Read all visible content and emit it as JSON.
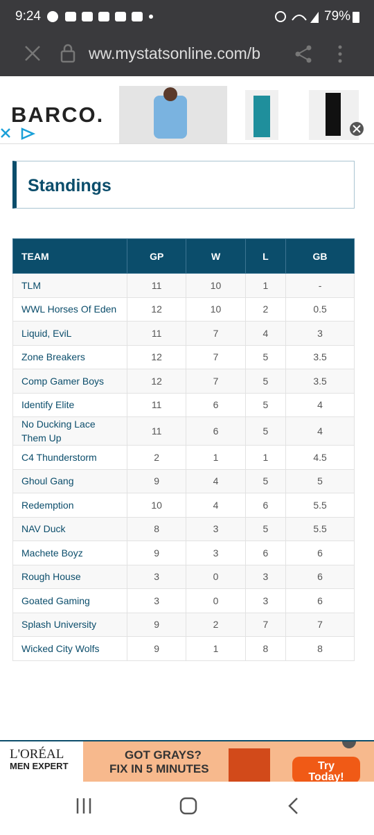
{
  "status_bar": {
    "time": "9:24",
    "battery": "79%"
  },
  "browser": {
    "url": "ww.mystatsonline.com/b"
  },
  "top_ad": {
    "brand": "BARCO."
  },
  "heading": "Standings",
  "table": {
    "columns": [
      "TEAM",
      "GP",
      "W",
      "L",
      "GB"
    ],
    "rows": [
      [
        "TLM",
        "11",
        "10",
        "1",
        "-"
      ],
      [
        "WWL Horses Of Eden",
        "12",
        "10",
        "2",
        "0.5"
      ],
      [
        "Liquid, EviL",
        "11",
        "7",
        "4",
        "3"
      ],
      [
        "Zone Breakers",
        "12",
        "7",
        "5",
        "3.5"
      ],
      [
        "Comp Gamer Boys",
        "12",
        "7",
        "5",
        "3.5"
      ],
      [
        "Identify Elite",
        "11",
        "6",
        "5",
        "4"
      ],
      [
        "No Ducking Lace Them Up",
        "11",
        "6",
        "5",
        "4"
      ],
      [
        "C4 Thunderstorm",
        "2",
        "1",
        "1",
        "4.5"
      ],
      [
        "Ghoul Gang",
        "9",
        "4",
        "5",
        "5"
      ],
      [
        "Redemption",
        "10",
        "4",
        "6",
        "5.5"
      ],
      [
        "NAV Duck",
        "8",
        "3",
        "5",
        "5.5"
      ],
      [
        "Machete Boyz",
        "9",
        "3",
        "6",
        "6"
      ],
      [
        "Rough House",
        "3",
        "0",
        "3",
        "6"
      ],
      [
        "Goated Gaming",
        "3",
        "0",
        "3",
        "6"
      ],
      [
        "Splash University",
        "9",
        "2",
        "7",
        "7"
      ],
      [
        "Wicked City Wolfs",
        "9",
        "1",
        "8",
        "8"
      ]
    ]
  },
  "bottom_ad": {
    "brand": "L'ORÉAL",
    "line": "MEN EXPERT",
    "headline": "GOT GRAYS?",
    "subline": "FIX IN 5 MINUTES",
    "cta": "Try Today!"
  }
}
